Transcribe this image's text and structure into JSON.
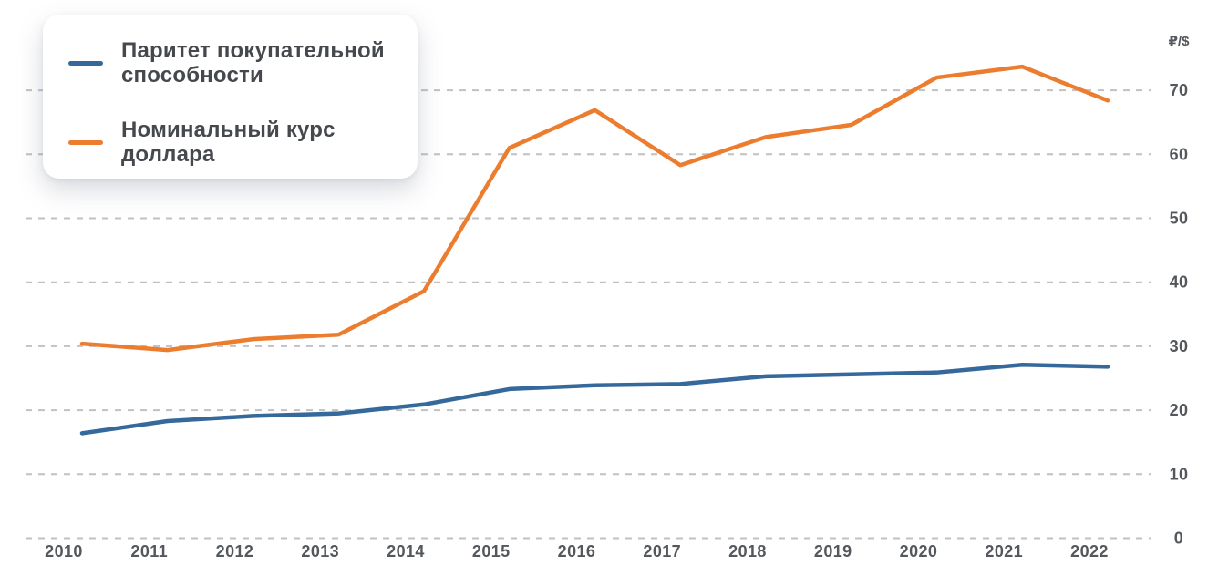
{
  "unit_label": "₽/$",
  "legend": {
    "items": [
      {
        "label_lines": [
          "Паритет покупательной",
          "способности"
        ]
      },
      {
        "label_lines": [
          "Номинальный курс",
          "доллара"
        ]
      }
    ]
  },
  "colors": {
    "series_ppp": "#35689b",
    "series_nominal": "#ec7d2f",
    "grid": "#b2b2b6",
    "axis_text": "#54585c",
    "legend_text": "#45494e",
    "background": "#ffffff"
  },
  "chart_data": {
    "type": "line",
    "x": [
      2010,
      2011,
      2012,
      2013,
      2014,
      2015,
      2016,
      2017,
      2018,
      2019,
      2020,
      2021,
      2022
    ],
    "series": [
      {
        "name": "Паритет покупательной способности",
        "color": "#35689b",
        "values": [
          16.4,
          18.3,
          19.1,
          19.5,
          20.9,
          23.3,
          23.9,
          24.1,
          25.3,
          25.6,
          25.9,
          27.1,
          26.8
        ]
      },
      {
        "name": "Номинальный курс доллара",
        "color": "#ec7d2f",
        "values": [
          30.4,
          29.4,
          31.1,
          31.8,
          38.6,
          61.0,
          66.9,
          58.3,
          62.7,
          64.6,
          72.0,
          73.7,
          68.4
        ]
      }
    ],
    "title": "",
    "xlabel": "",
    "ylabel": "₽/$",
    "ylim": [
      0,
      75
    ],
    "yticks": [
      0,
      10,
      20,
      30,
      40,
      50,
      60,
      70
    ],
    "grid": "horizontal-dashed",
    "legend_position": "top-left"
  }
}
